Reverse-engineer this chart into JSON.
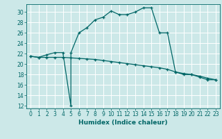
{
  "xlabel": "Humidex (Indice chaleur)",
  "bg_color": "#cce8e8",
  "grid_color": "#ffffff",
  "line_color": "#006666",
  "ylim": [
    11.5,
    31.5
  ],
  "xlim": [
    -0.5,
    23.5
  ],
  "yticks": [
    12,
    14,
    16,
    18,
    20,
    22,
    24,
    26,
    28,
    30
  ],
  "xticks": [
    0,
    1,
    2,
    3,
    4,
    5,
    6,
    7,
    8,
    9,
    10,
    11,
    12,
    13,
    14,
    15,
    16,
    17,
    18,
    19,
    20,
    21,
    22,
    23
  ],
  "line1_x": [
    0,
    1,
    2,
    3,
    4,
    5,
    5,
    6,
    7,
    8,
    9,
    10,
    11,
    12,
    13,
    14,
    15,
    16,
    17,
    18,
    19,
    20,
    21,
    22,
    23
  ],
  "line1_y": [
    21.5,
    21.3,
    21.8,
    22.2,
    22.2,
    12.0,
    22.2,
    26.0,
    27.0,
    28.5,
    29.0,
    30.2,
    29.5,
    29.5,
    30.0,
    30.8,
    30.8,
    26.0,
    26.0,
    18.5,
    18.0,
    18.0,
    17.5,
    17.0,
    17.0
  ],
  "line2_x": [
    0,
    1,
    2,
    3,
    4,
    5,
    6,
    7,
    8,
    9,
    10,
    11,
    12,
    13,
    14,
    15,
    16,
    17,
    18,
    19,
    20,
    21,
    22,
    23
  ],
  "line2_y": [
    21.5,
    21.3,
    21.3,
    21.3,
    21.3,
    21.2,
    21.1,
    21.0,
    20.9,
    20.7,
    20.5,
    20.3,
    20.1,
    19.9,
    19.7,
    19.5,
    19.3,
    19.0,
    18.5,
    18.2,
    18.0,
    17.7,
    17.3,
    17.0
  ],
  "tick_fontsize": 5.5,
  "xlabel_fontsize": 6.5
}
